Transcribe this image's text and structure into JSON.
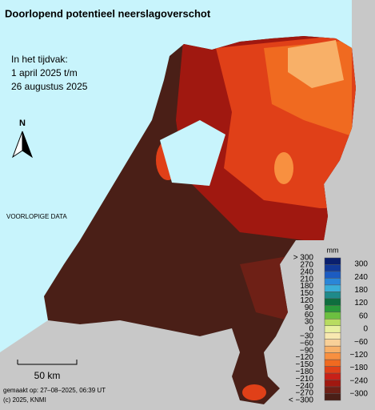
{
  "title": "Doorlopend potentieel neerslagoverschot",
  "period": [
    "In het tijdvak:",
    "1 april 2025 t/m",
    "26 augustus 2025"
  ],
  "north": "N",
  "notice": "VOORLOPIGE DATA",
  "legend": {
    "unit": "mm",
    "left_labels": [
      "> 300",
      "270",
      "240",
      "210",
      "180",
      "150",
      "120",
      "90",
      "60",
      "30",
      "0",
      "−30",
      "−60",
      "−90",
      "−120",
      "−150",
      "−180",
      "−210",
      "−240",
      "−270",
      "< −300"
    ],
    "right_labels": [
      "300",
      "240",
      "180",
      "120",
      "60",
      "0",
      "−60",
      "−120",
      "−180",
      "−240",
      "−300"
    ],
    "colors": [
      "#0a1f6e",
      "#123a9a",
      "#1c5cc2",
      "#2a86d8",
      "#3aaed8",
      "#1e8a8a",
      "#0e6e3e",
      "#2a9a3a",
      "#6cc040",
      "#b8dc60",
      "#e8f0a0",
      "#f8e8b0",
      "#f8d098",
      "#f8b068",
      "#f89040",
      "#f06a20",
      "#e04018",
      "#c82018",
      "#a01810",
      "#6e2016",
      "#4a1f17"
    ]
  },
  "scale": "50 km",
  "footer": [
    "gemaakt op: 27–08–2025, 06:39 UT",
    "(c) 2025, KNMI"
  ]
}
